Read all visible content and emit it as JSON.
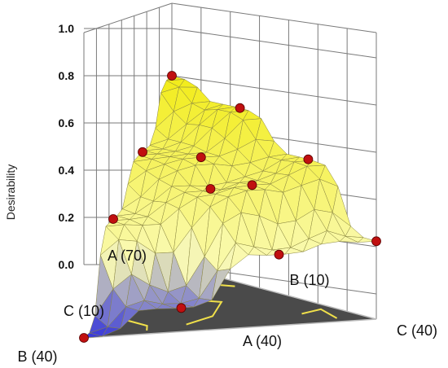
{
  "chart_data": {
    "type": "surface3d-mixture",
    "zlabel": "Desirability",
    "zlim": [
      0,
      1
    ],
    "z_ticks": [
      "0.0",
      "0.2",
      "0.4",
      "0.6",
      "0.8",
      "1.0"
    ],
    "vertices": {
      "a_high": "A (70)",
      "b_low": "B (10)",
      "c_high": "C (40)",
      "a_low": "A (40)",
      "b_high": "B (40)",
      "c_low": "C (10)"
    },
    "design_points": [
      {
        "a": 1.0,
        "b": 0.0,
        "c": 0.0,
        "desirability": 0.8
      },
      {
        "a": 0.0,
        "b": 0.0,
        "c": 1.0,
        "desirability": 0.33
      },
      {
        "a": 0.0,
        "b": 1.0,
        "c": 0.0,
        "desirability": 0.0
      },
      {
        "a": 0.667,
        "b": 0.333,
        "c": 0.0,
        "desirability": 0.58
      },
      {
        "a": 0.667,
        "b": 0.0,
        "c": 0.333,
        "desirability": 0.74
      },
      {
        "a": 0.333,
        "b": 0.667,
        "c": 0.0,
        "desirability": 0.4
      },
      {
        "a": 0.333,
        "b": 0.0,
        "c": 0.667,
        "desirability": 0.6
      },
      {
        "a": 0.0,
        "b": 0.667,
        "c": 0.333,
        "desirability": 0.1
      },
      {
        "a": 0.0,
        "b": 0.333,
        "c": 0.667,
        "desirability": 0.3
      },
      {
        "a": 0.333,
        "b": 0.333,
        "c": 0.333,
        "desirability": 0.5
      },
      {
        "a": 0.5,
        "b": 0.25,
        "c": 0.25,
        "desirability": 0.59
      },
      {
        "a": 0.25,
        "b": 0.25,
        "c": 0.5,
        "desirability": 0.53
      }
    ],
    "colors": {
      "surface_high": "#f2ec1a",
      "surface_low": "#3a3ad8",
      "point": "#c01010",
      "floor": "#4a4a4a",
      "contour": "#f0e04a"
    }
  }
}
